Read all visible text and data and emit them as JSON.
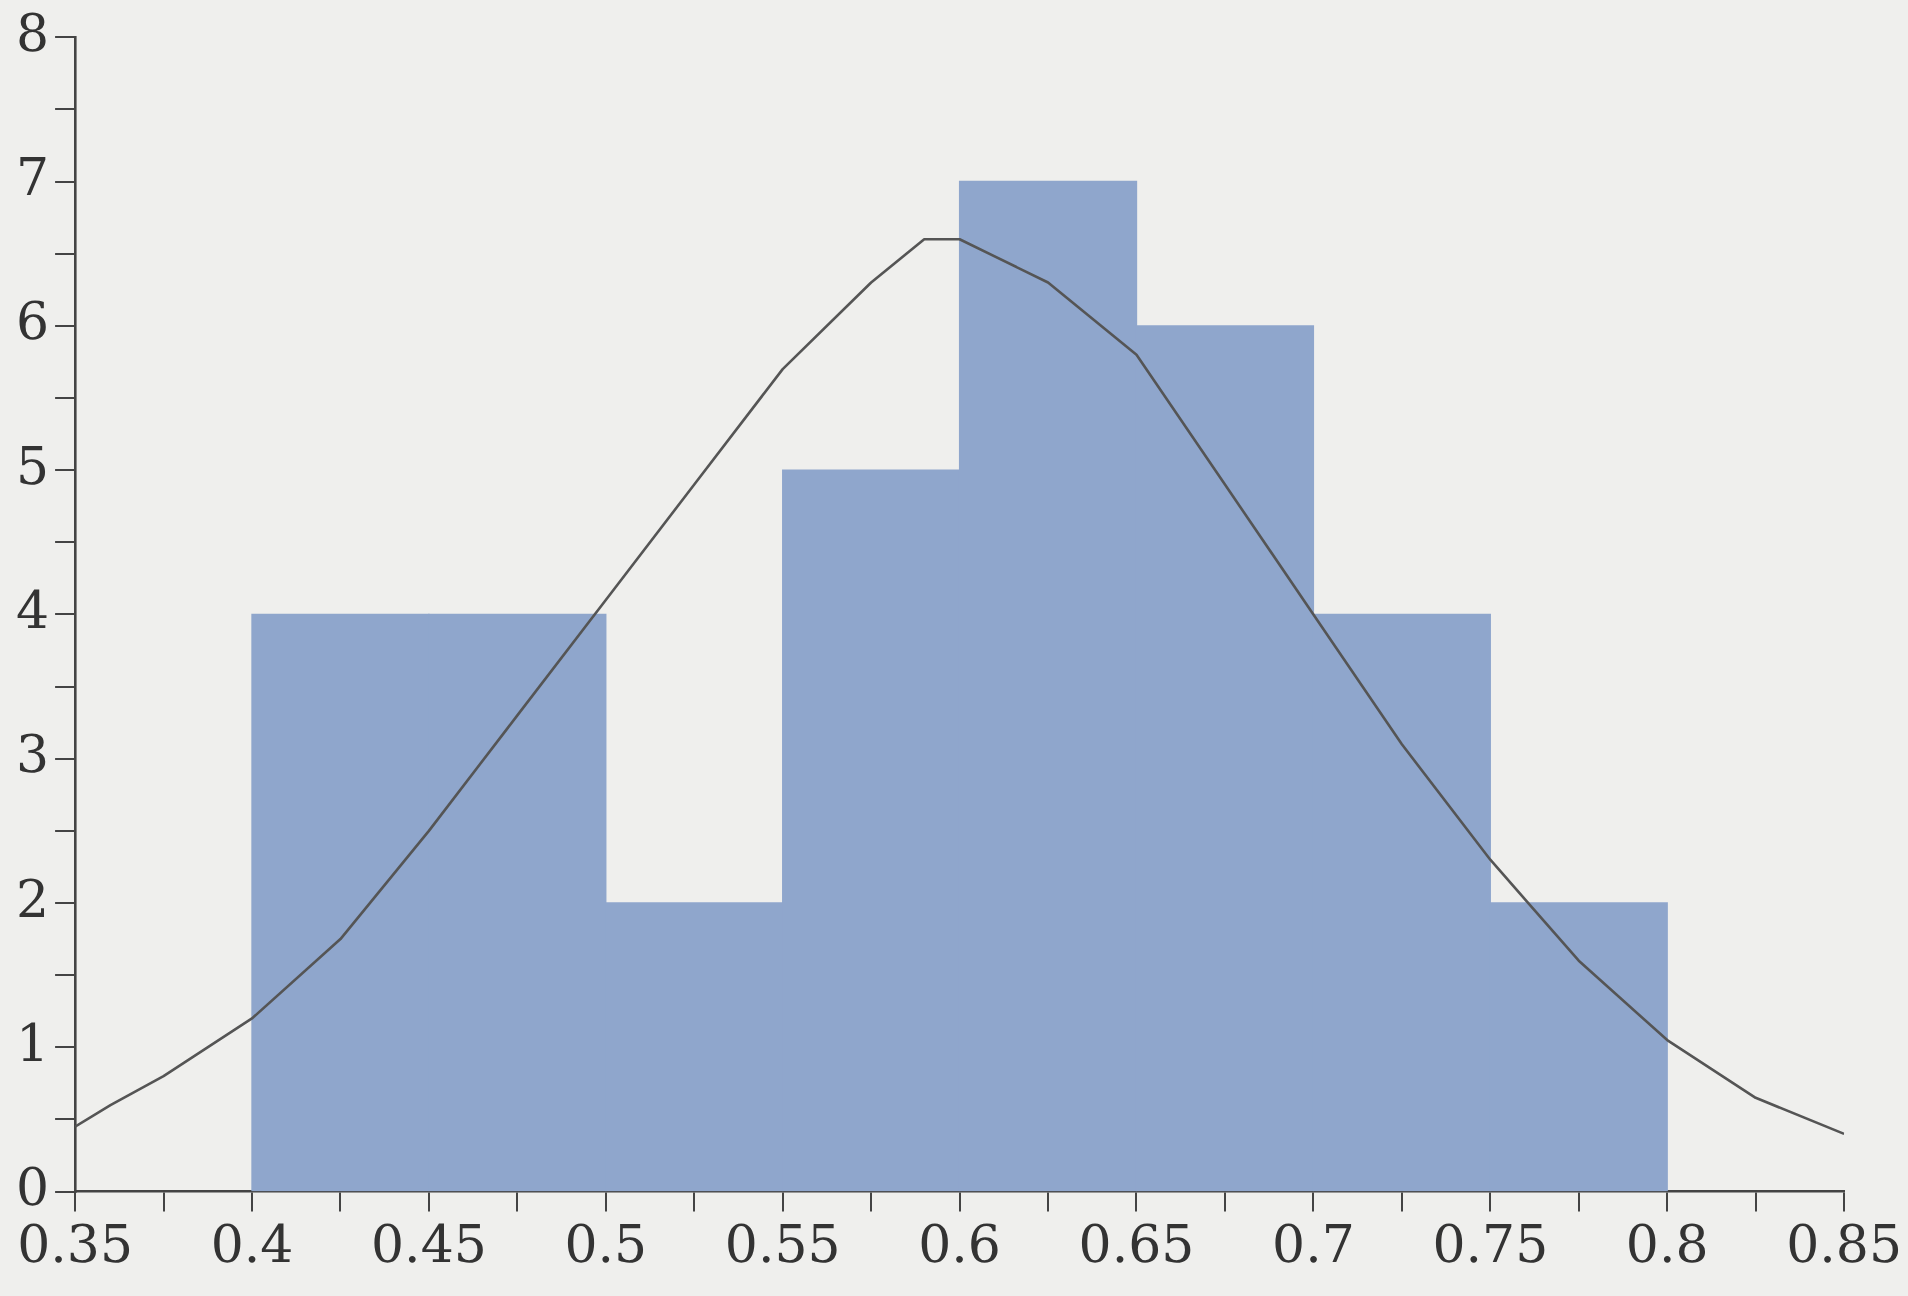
{
  "chart_data": {
    "type": "histogram",
    "bins": [
      0.4,
      0.45,
      0.5,
      0.55,
      0.6,
      0.65,
      0.7,
      0.75,
      0.8
    ],
    "values": [
      4,
      4,
      2,
      5,
      7,
      6,
      4,
      2
    ],
    "color": "#8fa6cc",
    "series": [
      {
        "type": "line",
        "color": "#555555",
        "x": [
          0.35,
          0.36,
          0.375,
          0.4,
          0.425,
          0.45,
          0.475,
          0.5,
          0.525,
          0.55,
          0.575,
          0.59,
          0.6,
          0.625,
          0.65,
          0.675,
          0.7,
          0.725,
          0.75,
          0.775,
          0.8,
          0.825,
          0.85
        ],
        "values": [
          0.45,
          0.6,
          0.8,
          1.2,
          1.75,
          2.5,
          3.3,
          4.1,
          4.9,
          5.7,
          6.3,
          6.6,
          6.6,
          6.3,
          5.8,
          4.9,
          4.0,
          3.1,
          2.3,
          1.6,
          1.05,
          0.65,
          0.4
        ]
      }
    ],
    "xlim": [
      0.35,
      0.85
    ],
    "xticks": [
      0.35,
      {
        "value": 0.375,
        "label": null
      },
      0.4,
      {
        "value": 0.425,
        "label": null
      },
      0.45,
      {
        "value": 0.475,
        "label": null
      },
      0.5,
      {
        "value": 0.525,
        "label": null
      },
      0.55,
      {
        "value": 0.575,
        "label": null
      },
      0.6,
      {
        "value": 0.625,
        "label": null
      },
      0.65,
      {
        "value": 0.675,
        "label": null
      },
      0.7,
      {
        "value": 0.725,
        "label": null
      },
      0.75,
      {
        "value": 0.775,
        "label": null
      },
      0.8,
      {
        "value": 0.825,
        "label": null
      },
      0.85
    ],
    "ylim": [
      0,
      8
    ],
    "yticks": [
      0,
      {
        "value": 0.5,
        "label": null
      },
      1,
      {
        "value": 1.5,
        "label": null
      },
      2,
      {
        "value": 2.5,
        "label": null
      },
      3,
      {
        "value": 3.5,
        "label": null
      },
      4,
      {
        "value": 4.5,
        "label": null
      },
      5,
      {
        "value": 5.5,
        "label": null
      },
      6,
      {
        "value": 6.5,
        "label": null
      },
      7,
      {
        "value": 7.5,
        "label": null
      },
      8
    ],
    "grid": false,
    "legend": false,
    "marker": "none",
    "line_style": "solid"
  }
}
